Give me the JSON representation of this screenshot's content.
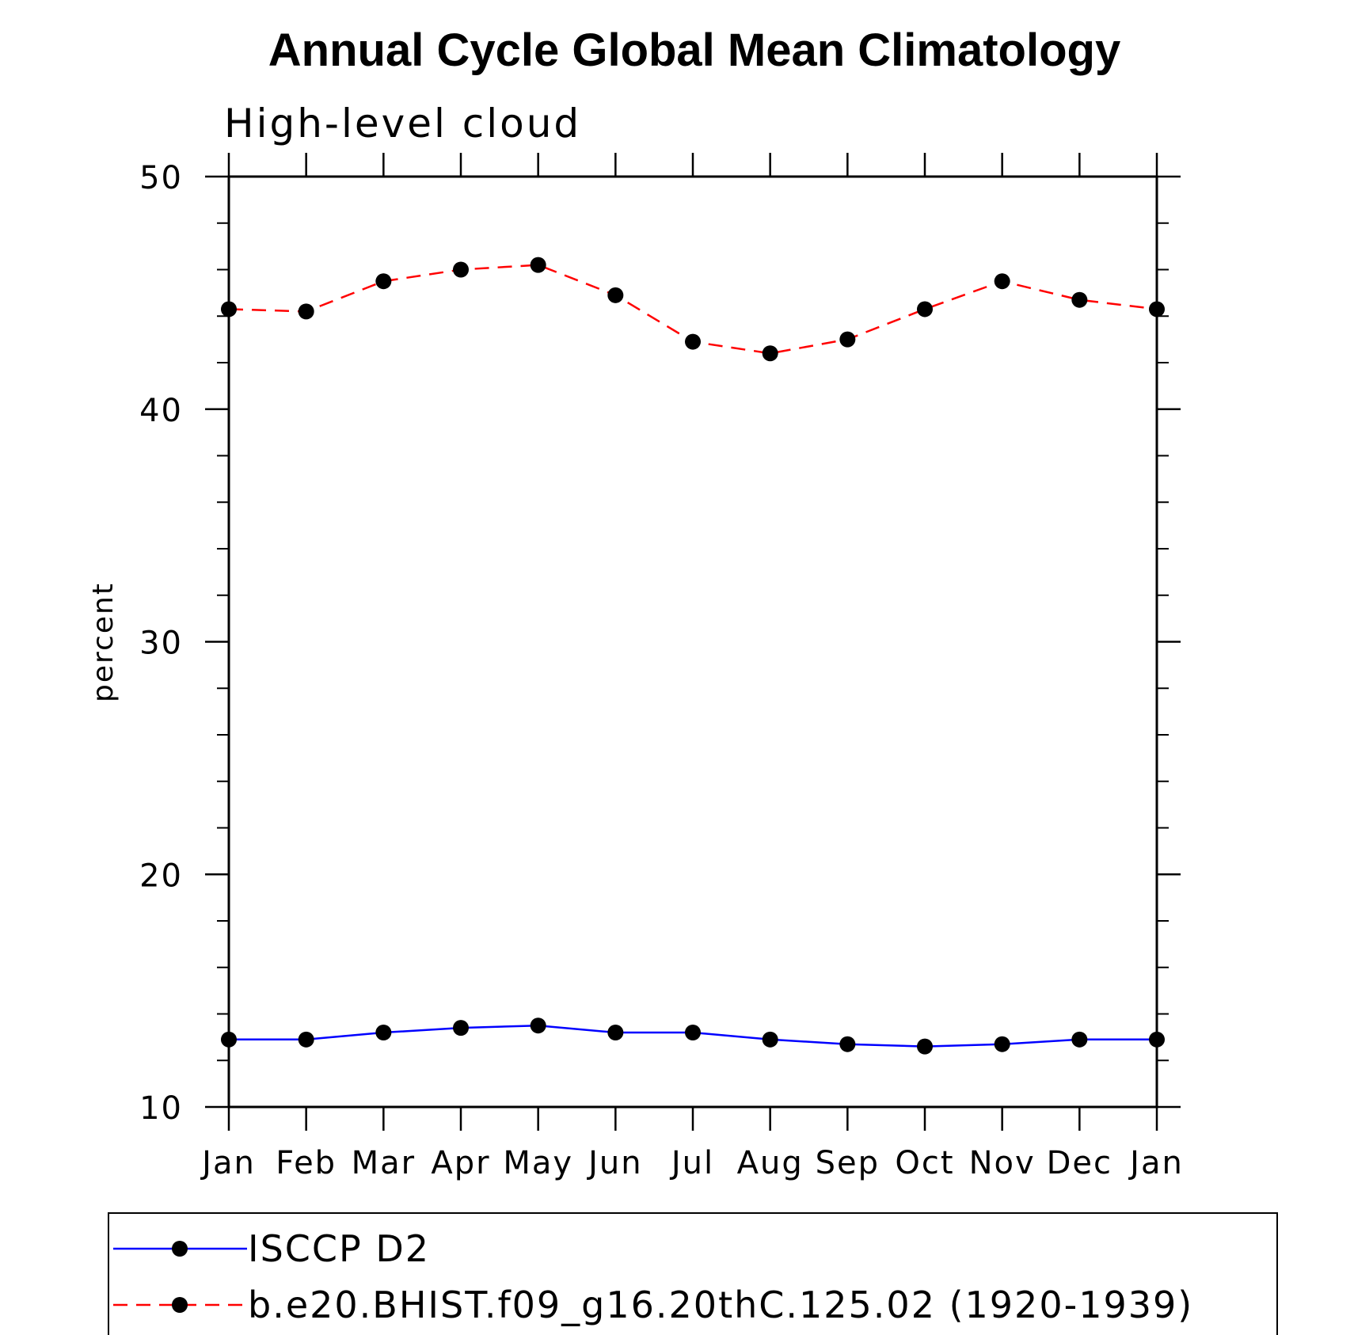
{
  "chart_data": {
    "type": "line",
    "title": "Annual Cycle Global Mean Climatology",
    "subtitle": "High-level cloud",
    "ylabel": "percent",
    "xlabel": "",
    "categories": [
      "Jan",
      "Feb",
      "Mar",
      "Apr",
      "May",
      "Jun",
      "Jul",
      "Aug",
      "Sep",
      "Oct",
      "Nov",
      "Dec",
      "Jan"
    ],
    "ylim": [
      10,
      50
    ],
    "yticks": [
      10,
      20,
      30,
      40,
      50
    ],
    "grid": false,
    "legend_position": "bottom",
    "series": [
      {
        "name": "ISCCP D2",
        "color": "#0000ff",
        "line_style": "solid",
        "marker": "filled-circle",
        "values": [
          12.9,
          12.9,
          13.2,
          13.4,
          13.5,
          13.2,
          13.2,
          12.9,
          12.7,
          12.6,
          12.7,
          12.9,
          12.9
        ]
      },
      {
        "name": "b.e20.BHIST.f09_g16.20thC.125.02 (1920-1939)",
        "color": "#ff0000",
        "line_style": "dashed",
        "marker": "filled-circle",
        "values": [
          44.3,
          44.2,
          45.5,
          46.0,
          46.2,
          44.9,
          42.9,
          42.4,
          43.0,
          44.3,
          45.5,
          44.7,
          44.3
        ]
      }
    ]
  }
}
